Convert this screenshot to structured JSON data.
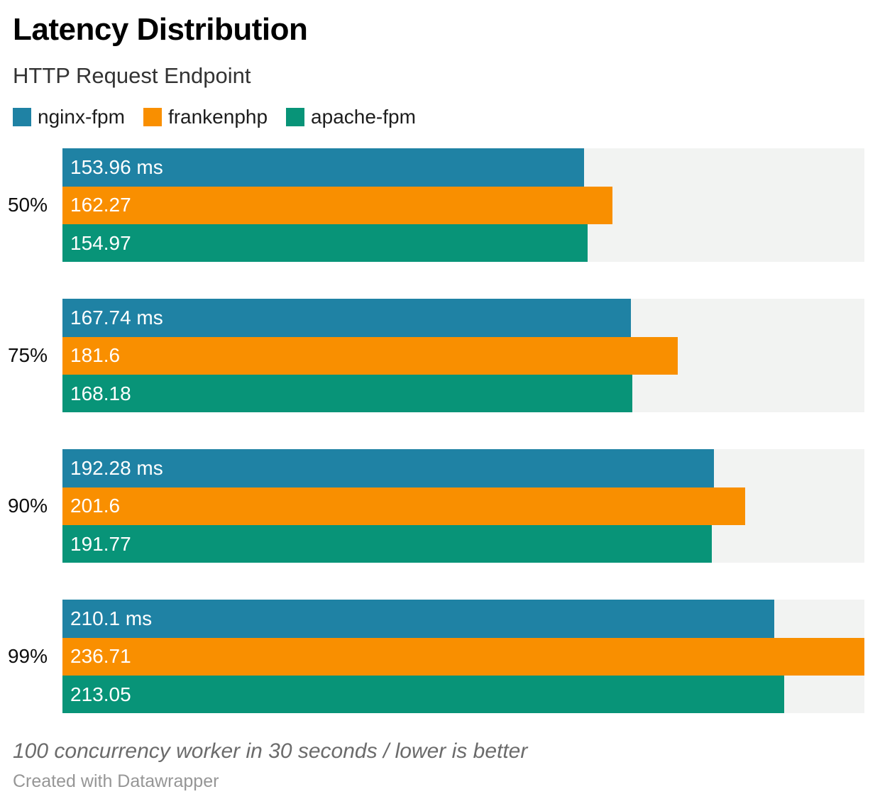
{
  "title": "Latency Distribution",
  "subtitle": "HTTP Request Endpoint",
  "chart_data": {
    "type": "bar",
    "orientation": "horizontal",
    "title": "Latency Distribution",
    "subtitle": "HTTP Request Endpoint",
    "value_unit": "ms",
    "categories": [
      "50%",
      "75%",
      "90%",
      "99%"
    ],
    "series": [
      {
        "name": "nginx-fpm",
        "color": "#1f82a4",
        "values": [
          153.96,
          167.74,
          192.28,
          210.1
        ],
        "labels": [
          "153.96 ms",
          "167.74 ms",
          "192.28 ms",
          "210.1 ms"
        ]
      },
      {
        "name": "frankenphp",
        "color": "#f98f00",
        "values": [
          162.27,
          181.6,
          201.6,
          236.71
        ],
        "labels": [
          "162.27",
          "181.6",
          "201.6",
          "236.71"
        ]
      },
      {
        "name": "apache-fpm",
        "color": "#089478",
        "values": [
          154.97,
          168.18,
          191.77,
          213.05
        ],
        "labels": [
          "154.97",
          "168.18",
          "191.77",
          "213.05"
        ]
      }
    ],
    "xlim": [
      0,
      236.71
    ],
    "grid": false,
    "legend_position": "top",
    "track_color": "#f2f3f2",
    "value_labels_inside_bars": true
  },
  "footer": {
    "note": "100 concurrency worker in 30 seconds / lower is better",
    "credit": "Created with Datawrapper"
  }
}
